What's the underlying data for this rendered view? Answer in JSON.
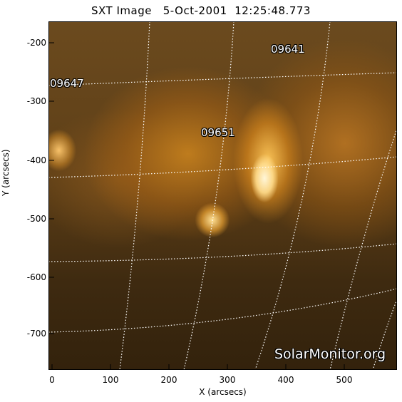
{
  "title": "SXT Image   5-Oct-2001  12:25:48.773",
  "x_axis": {
    "label": "X (arcsecs)",
    "ticks": [
      "0",
      "100",
      "200",
      "300",
      "400",
      "500"
    ]
  },
  "y_axis": {
    "label": "Y (arcsecs)",
    "ticks": [
      "-200",
      "-300",
      "-400",
      "-500",
      "-600",
      "-700"
    ]
  },
  "active_regions": [
    "09641",
    "09647",
    "09651"
  ],
  "watermark": "SolarMonitor.org",
  "colors": {
    "image_tint": "#c8821e",
    "grid": "#ffffff"
  }
}
